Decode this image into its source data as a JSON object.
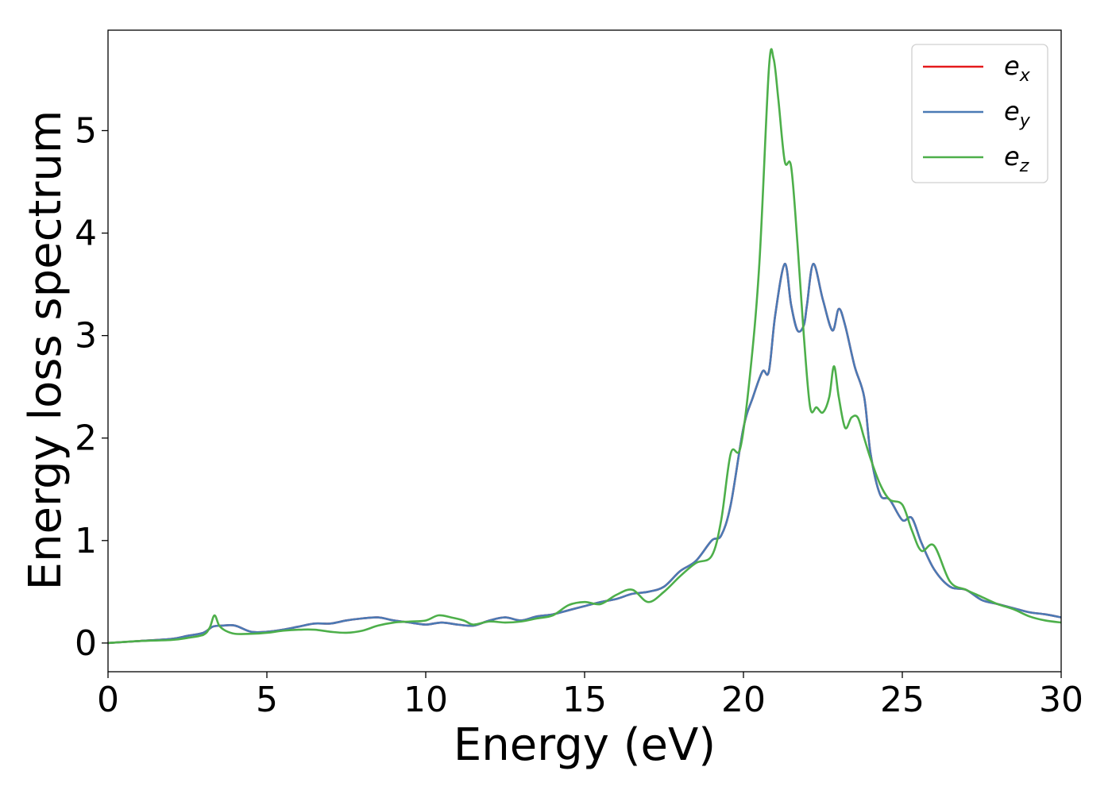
{
  "chart_data": {
    "type": "line",
    "xlabel": "Energy (eV)",
    "ylabel": "Energy loss spectrum",
    "xlim": [
      0,
      30
    ],
    "ylim": [
      -0.28,
      5.98
    ],
    "xticks": [
      0,
      5,
      10,
      15,
      20,
      25,
      30
    ],
    "yticks": [
      0,
      1,
      2,
      3,
      4,
      5
    ],
    "grid": false,
    "legend_position": "top-right",
    "series": [
      {
        "name": "e_x",
        "label_base": "e",
        "label_sub": "x",
        "color": "#e41a1c",
        "x": [
          0,
          1,
          2,
          2.5,
          3.0,
          3.3,
          3.6,
          4.0,
          4.5,
          5.0,
          5.5,
          6.0,
          6.5,
          7.0,
          7.5,
          8.0,
          8.5,
          9.0,
          9.5,
          10.0,
          10.5,
          11.0,
          11.5,
          12.0,
          12.5,
          13.0,
          13.5,
          14.0,
          14.5,
          15.0,
          15.5,
          16.0,
          16.5,
          17.0,
          17.5,
          18.0,
          18.5,
          19.0,
          19.3,
          19.6,
          20.0,
          20.3,
          20.6,
          20.8,
          21.0,
          21.3,
          21.5,
          21.7,
          21.9,
          22.0,
          22.2,
          22.5,
          22.8,
          23.0,
          23.2,
          23.5,
          23.8,
          24.0,
          24.3,
          24.6,
          25.0,
          25.3,
          25.6,
          26.0,
          26.5,
          27.0,
          27.5,
          28.0,
          28.5,
          29.0,
          29.5,
          30.0
        ],
        "y": [
          0.0,
          0.02,
          0.04,
          0.07,
          0.1,
          0.16,
          0.17,
          0.17,
          0.11,
          0.11,
          0.13,
          0.16,
          0.19,
          0.19,
          0.22,
          0.24,
          0.25,
          0.22,
          0.2,
          0.18,
          0.2,
          0.18,
          0.17,
          0.22,
          0.25,
          0.22,
          0.26,
          0.28,
          0.32,
          0.36,
          0.4,
          0.43,
          0.48,
          0.5,
          0.55,
          0.7,
          0.8,
          1.0,
          1.05,
          1.35,
          2.1,
          2.4,
          2.65,
          2.65,
          3.2,
          3.7,
          3.3,
          3.05,
          3.1,
          3.3,
          3.7,
          3.35,
          3.05,
          3.26,
          3.1,
          2.7,
          2.4,
          1.85,
          1.45,
          1.4,
          1.2,
          1.22,
          0.98,
          0.72,
          0.55,
          0.52,
          0.42,
          0.38,
          0.34,
          0.3,
          0.28,
          0.25
        ]
      },
      {
        "name": "e_y",
        "label_base": "e",
        "label_sub": "y",
        "color": "#4a7ab5",
        "x": [
          0,
          1,
          2,
          2.5,
          3.0,
          3.3,
          3.6,
          4.0,
          4.5,
          5.0,
          5.5,
          6.0,
          6.5,
          7.0,
          7.5,
          8.0,
          8.5,
          9.0,
          9.5,
          10.0,
          10.5,
          11.0,
          11.5,
          12.0,
          12.5,
          13.0,
          13.5,
          14.0,
          14.5,
          15.0,
          15.5,
          16.0,
          16.5,
          17.0,
          17.5,
          18.0,
          18.5,
          19.0,
          19.3,
          19.6,
          20.0,
          20.3,
          20.6,
          20.8,
          21.0,
          21.3,
          21.5,
          21.7,
          21.9,
          22.0,
          22.2,
          22.5,
          22.8,
          23.0,
          23.2,
          23.5,
          23.8,
          24.0,
          24.3,
          24.6,
          25.0,
          25.3,
          25.6,
          26.0,
          26.5,
          27.0,
          27.5,
          28.0,
          28.5,
          29.0,
          29.5,
          30.0
        ],
        "y": [
          0.0,
          0.02,
          0.04,
          0.07,
          0.1,
          0.16,
          0.17,
          0.17,
          0.11,
          0.11,
          0.13,
          0.16,
          0.19,
          0.19,
          0.22,
          0.24,
          0.25,
          0.22,
          0.2,
          0.18,
          0.2,
          0.18,
          0.17,
          0.22,
          0.25,
          0.22,
          0.26,
          0.28,
          0.32,
          0.36,
          0.4,
          0.43,
          0.48,
          0.5,
          0.55,
          0.7,
          0.8,
          1.0,
          1.05,
          1.35,
          2.1,
          2.4,
          2.65,
          2.65,
          3.2,
          3.7,
          3.3,
          3.05,
          3.1,
          3.3,
          3.7,
          3.35,
          3.05,
          3.26,
          3.1,
          2.7,
          2.4,
          1.85,
          1.45,
          1.4,
          1.2,
          1.22,
          0.98,
          0.72,
          0.55,
          0.52,
          0.42,
          0.38,
          0.34,
          0.3,
          0.28,
          0.25
        ]
      },
      {
        "name": "e_z",
        "label_base": "e",
        "label_sub": "z",
        "color": "#4daf4a",
        "x": [
          0,
          1,
          2,
          2.5,
          3.0,
          3.2,
          3.35,
          3.5,
          3.7,
          4.0,
          4.5,
          5.0,
          5.5,
          6.0,
          6.5,
          7.0,
          7.5,
          8.0,
          8.5,
          9.0,
          9.5,
          10.0,
          10.4,
          10.8,
          11.2,
          11.5,
          12.0,
          12.5,
          13.0,
          13.5,
          14.0,
          14.5,
          15.0,
          15.5,
          16.0,
          16.5,
          17.0,
          17.5,
          18.0,
          18.5,
          19.0,
          19.3,
          19.6,
          19.9,
          20.2,
          20.5,
          20.8,
          20.95,
          21.1,
          21.3,
          21.5,
          21.7,
          21.9,
          22.1,
          22.3,
          22.5,
          22.7,
          22.85,
          23.0,
          23.2,
          23.4,
          23.6,
          23.8,
          24.0,
          24.3,
          24.6,
          25.0,
          25.3,
          25.6,
          26.0,
          26.5,
          27.0,
          27.5,
          28.0,
          28.5,
          29.0,
          29.5,
          30.0
        ],
        "y": [
          0.0,
          0.02,
          0.03,
          0.05,
          0.08,
          0.15,
          0.27,
          0.17,
          0.12,
          0.09,
          0.09,
          0.1,
          0.12,
          0.13,
          0.13,
          0.11,
          0.1,
          0.12,
          0.17,
          0.2,
          0.21,
          0.22,
          0.27,
          0.25,
          0.22,
          0.18,
          0.21,
          0.2,
          0.21,
          0.24,
          0.27,
          0.37,
          0.4,
          0.38,
          0.47,
          0.52,
          0.4,
          0.5,
          0.65,
          0.78,
          0.85,
          1.2,
          1.85,
          1.9,
          2.6,
          3.7,
          5.6,
          5.7,
          5.3,
          4.7,
          4.65,
          3.9,
          3.0,
          2.3,
          2.3,
          2.25,
          2.4,
          2.7,
          2.4,
          2.1,
          2.2,
          2.2,
          2.0,
          1.8,
          1.55,
          1.4,
          1.35,
          1.1,
          0.9,
          0.95,
          0.6,
          0.52,
          0.45,
          0.38,
          0.33,
          0.26,
          0.22,
          0.2
        ]
      }
    ]
  }
}
